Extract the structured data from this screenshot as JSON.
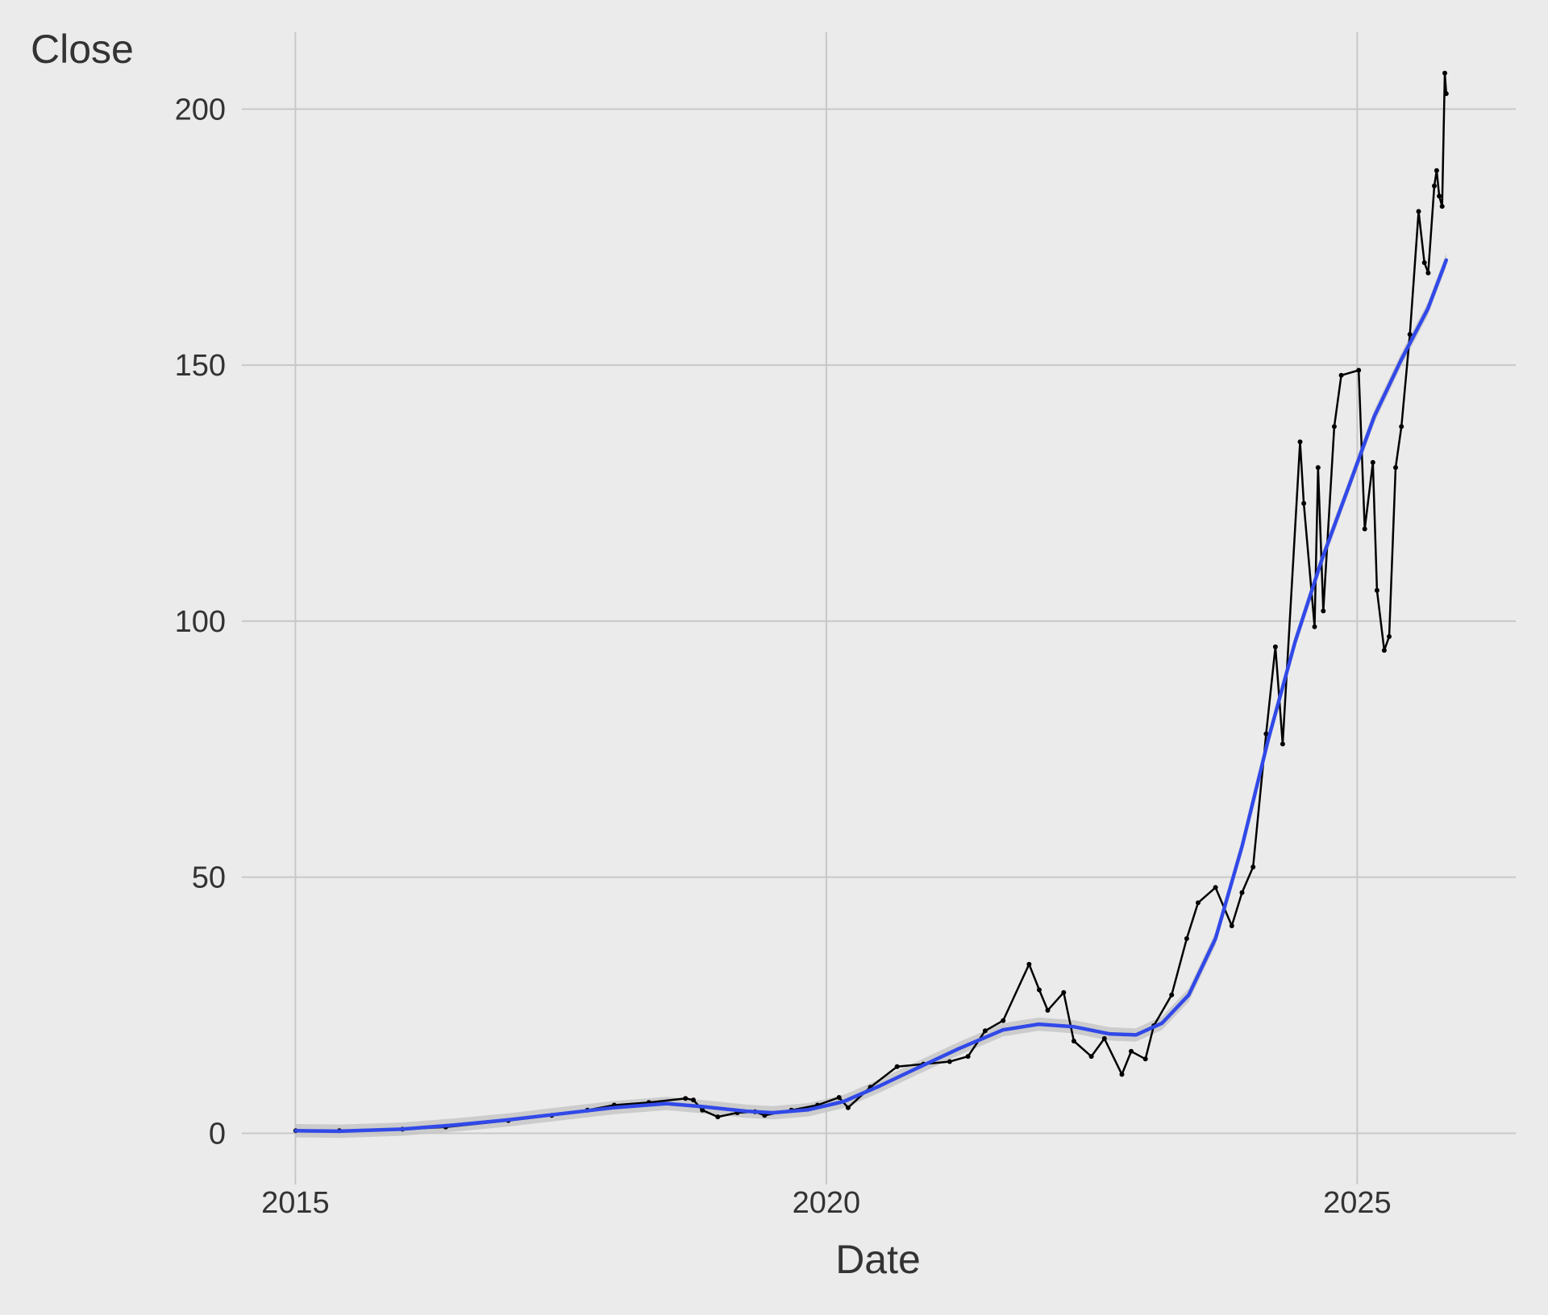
{
  "chart_data": {
    "type": "line",
    "title": "",
    "xlabel": "Date",
    "ylabel": "Close",
    "x_is_date": true,
    "xlim": [
      "2014-07-01",
      "2026-06-30"
    ],
    "ylim": [
      -10,
      215
    ],
    "x_ticks": [
      "2015",
      "2020",
      "2025"
    ],
    "y_ticks": [
      0,
      50,
      100,
      150,
      200
    ],
    "grid": true,
    "legend": "none",
    "colors": {
      "background": "#ebebeb",
      "grid": "#c8c8c8",
      "price_line": "#000000",
      "smooth_line": "#3149e8",
      "confidence_band": "#c4c4c4"
    },
    "series": [
      {
        "role": "close-price",
        "points": [
          [
            "2015-01-02",
            0.5
          ],
          [
            "2015-06-01",
            0.5
          ],
          [
            "2016-01-04",
            0.8
          ],
          [
            "2016-06-01",
            1.2
          ],
          [
            "2017-01-03",
            2.5
          ],
          [
            "2017-06-01",
            3.5
          ],
          [
            "2017-10-02",
            4.5
          ],
          [
            "2018-01-02",
            5.5
          ],
          [
            "2018-05-01",
            6.0
          ],
          [
            "2018-09-04",
            6.8
          ],
          [
            "2018-10-01",
            6.5
          ],
          [
            "2018-11-01",
            4.5
          ],
          [
            "2018-12-24",
            3.2
          ],
          [
            "2019-03-01",
            4.0
          ],
          [
            "2019-05-01",
            4.2
          ],
          [
            "2019-06-03",
            3.5
          ],
          [
            "2019-09-03",
            4.5
          ],
          [
            "2019-12-02",
            5.5
          ],
          [
            "2020-02-14",
            7.0
          ],
          [
            "2020-03-16",
            5.0
          ],
          [
            "2020-06-01",
            9.0
          ],
          [
            "2020-09-01",
            13.0
          ],
          [
            "2020-12-01",
            13.5
          ],
          [
            "2021-03-01",
            14.0
          ],
          [
            "2021-05-03",
            15.0
          ],
          [
            "2021-07-01",
            20.0
          ],
          [
            "2021-09-01",
            22.0
          ],
          [
            "2021-11-29",
            33.0
          ],
          [
            "2022-01-03",
            28.0
          ],
          [
            "2022-02-01",
            24.0
          ],
          [
            "2022-03-28",
            27.5
          ],
          [
            "2022-05-02",
            18.0
          ],
          [
            "2022-07-01",
            15.0
          ],
          [
            "2022-08-15",
            18.5
          ],
          [
            "2022-10-14",
            11.5
          ],
          [
            "2022-11-15",
            16.0
          ],
          [
            "2023-01-03",
            14.5
          ],
          [
            "2023-02-01",
            21.0
          ],
          [
            "2023-04-03",
            27.0
          ],
          [
            "2023-05-25",
            38.0
          ],
          [
            "2023-07-03",
            45.0
          ],
          [
            "2023-09-01",
            48.0
          ],
          [
            "2023-10-27",
            40.5
          ],
          [
            "2023-12-01",
            47.0
          ],
          [
            "2024-01-08",
            52.0
          ],
          [
            "2024-02-22",
            78.0
          ],
          [
            "2024-03-25",
            95.0
          ],
          [
            "2024-04-19",
            76.0
          ],
          [
            "2024-06-18",
            135.0
          ],
          [
            "2024-07-01",
            123.0
          ],
          [
            "2024-08-07",
            98.9
          ],
          [
            "2024-08-19",
            130.0
          ],
          [
            "2024-09-06",
            102.0
          ],
          [
            "2024-10-14",
            138.0
          ],
          [
            "2024-11-07",
            148.0
          ],
          [
            "2025-01-06",
            149.0
          ],
          [
            "2025-01-27",
            118.0
          ],
          [
            "2025-02-24",
            131.0
          ],
          [
            "2025-03-10",
            106.0
          ],
          [
            "2025-04-04",
            94.3
          ],
          [
            "2025-04-21",
            97.0
          ],
          [
            "2025-05-13",
            130.0
          ],
          [
            "2025-06-02",
            138.0
          ],
          [
            "2025-07-01",
            156.0
          ],
          [
            "2025-07-31",
            180.0
          ],
          [
            "2025-08-20",
            170.0
          ],
          [
            "2025-09-02",
            168.0
          ],
          [
            "2025-09-23",
            185.0
          ],
          [
            "2025-10-01",
            188.0
          ],
          [
            "2025-10-10",
            183.0
          ],
          [
            "2025-10-20",
            181.0
          ],
          [
            "2025-10-29",
            207.0
          ],
          [
            "2025-11-03",
            203.0
          ]
        ]
      },
      {
        "role": "smoothed-fit",
        "points": [
          [
            "2015-01-02",
            0.5
          ],
          [
            "2015-06-01",
            0.4
          ],
          [
            "2016-01-01",
            0.8
          ],
          [
            "2016-07-01",
            1.6
          ],
          [
            "2017-01-01",
            2.6
          ],
          [
            "2017-07-01",
            3.8
          ],
          [
            "2018-01-01",
            5.0
          ],
          [
            "2018-07-01",
            5.8
          ],
          [
            "2018-11-01",
            5.2
          ],
          [
            "2019-04-01",
            4.3
          ],
          [
            "2019-07-01",
            4.0
          ],
          [
            "2019-11-01",
            4.6
          ],
          [
            "2020-03-01",
            6.2
          ],
          [
            "2020-07-01",
            9.2
          ],
          [
            "2020-11-01",
            12.5
          ],
          [
            "2021-04-01",
            16.5
          ],
          [
            "2021-09-01",
            20.2
          ],
          [
            "2022-01-01",
            21.3
          ],
          [
            "2022-05-01",
            20.8
          ],
          [
            "2022-09-01",
            19.4
          ],
          [
            "2022-12-01",
            19.2
          ],
          [
            "2023-03-01",
            21.5
          ],
          [
            "2023-06-01",
            27.0
          ],
          [
            "2023-09-01",
            38.0
          ],
          [
            "2023-12-01",
            56.0
          ],
          [
            "2024-03-01",
            77.0
          ],
          [
            "2024-06-01",
            96.0
          ],
          [
            "2024-09-01",
            112.0
          ],
          [
            "2024-12-01",
            126.0
          ],
          [
            "2025-03-01",
            140.0
          ],
          [
            "2025-06-01",
            151.0
          ],
          [
            "2025-09-01",
            161.0
          ],
          [
            "2025-11-03",
            170.5
          ]
        ]
      }
    ]
  }
}
